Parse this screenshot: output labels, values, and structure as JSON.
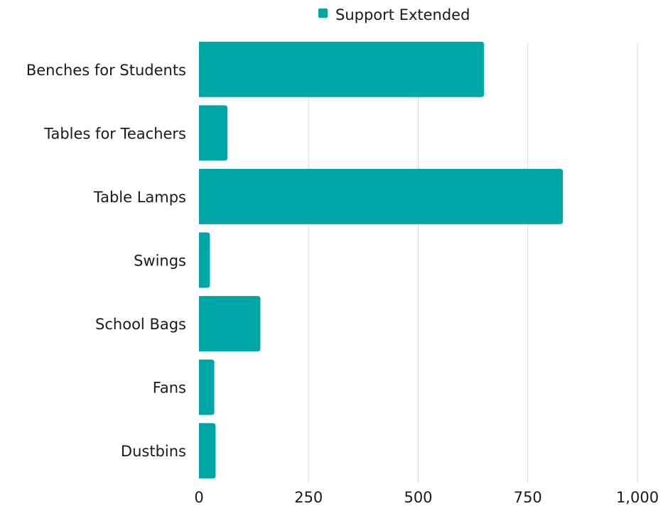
{
  "chart_data": {
    "type": "bar",
    "orientation": "horizontal",
    "title": "",
    "xlabel": "",
    "ylabel": "",
    "categories": [
      "Benches for Students",
      "Tables for Teachers",
      "Table Lamps",
      "Swings",
      "School Bags",
      "Fans",
      "Dustbins"
    ],
    "series": [
      {
        "name": "Support Extended",
        "color": "#00A6A6",
        "values": [
          650,
          65,
          830,
          25,
          140,
          35,
          38
        ]
      }
    ],
    "xlim": [
      0,
      1000
    ],
    "xticks": [
      0,
      250,
      500,
      750,
      1000
    ],
    "xtick_labels": [
      "0",
      "250",
      "500",
      "750",
      "1,000"
    ],
    "grid": "vertical",
    "gridline_color": "#d9d9d9",
    "legend": {
      "placement": "top",
      "entries": [
        "Support Extended"
      ]
    }
  }
}
